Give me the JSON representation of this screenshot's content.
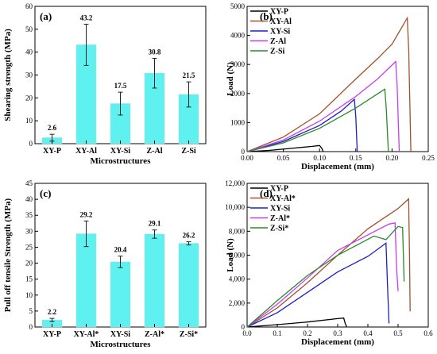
{
  "chart_data": [
    {
      "panel": "(a)",
      "type": "bar",
      "ylabel": "Shearing strength (MPa)",
      "xlabel": "Microstructures",
      "ylim": [
        0,
        60
      ],
      "yticks": [
        "0",
        "10",
        "20",
        "30",
        "40",
        "50",
        "60"
      ],
      "bar_color": "#5ff0f0",
      "categories": [
        "XY-P",
        "XY-Al",
        "XY-Si",
        "Z-Al",
        "Z-Si"
      ],
      "values": [
        2.6,
        43.2,
        17.5,
        30.8,
        21.5
      ],
      "errors": [
        1.5,
        9.0,
        5.0,
        6.5,
        5.5
      ],
      "value_labels": [
        "2.6",
        "43.2",
        "17.5",
        "30.8",
        "21.5"
      ]
    },
    {
      "panel": "(b)",
      "type": "line",
      "ylabel": "Load (N)",
      "xlabel": "Displacement (mm)",
      "xlim": [
        0,
        0.25
      ],
      "ylim": [
        0,
        5000
      ],
      "xticks": [
        "0.00",
        "0.05",
        "0.10",
        "0.15",
        "0.20",
        "0.25"
      ],
      "yticks": [
        "0",
        "1000",
        "2000",
        "3000",
        "4000",
        "5000"
      ],
      "legend_position": "top-left",
      "series": [
        {
          "name": "XY-P",
          "color": "#000000",
          "points": [
            [
              0,
              0
            ],
            [
              0.03,
              40
            ],
            [
              0.06,
              110
            ],
            [
              0.09,
              180
            ],
            [
              0.1,
              210
            ],
            [
              0.103,
              120
            ],
            [
              0.105,
              0
            ]
          ]
        },
        {
          "name": "XY-Al",
          "color": "#a0522d",
          "points": [
            [
              0,
              0
            ],
            [
              0.05,
              500
            ],
            [
              0.1,
              1300
            ],
            [
              0.15,
              2500
            ],
            [
              0.18,
              3200
            ],
            [
              0.2,
              3700
            ],
            [
              0.221,
              4600
            ],
            [
              0.223,
              3500
            ],
            [
              0.226,
              0
            ]
          ]
        },
        {
          "name": "XY-Si",
          "color": "#1e1ec8",
          "points": [
            [
              0,
              0
            ],
            [
              0.05,
              350
            ],
            [
              0.1,
              900
            ],
            [
              0.13,
              1400
            ],
            [
              0.148,
              1800
            ],
            [
              0.15,
              1200
            ],
            [
              0.152,
              0
            ]
          ]
        },
        {
          "name": "Z-Al",
          "color": "#c83cf0",
          "points": [
            [
              0,
              0
            ],
            [
              0.05,
              400
            ],
            [
              0.1,
              1050
            ],
            [
              0.15,
              1900
            ],
            [
              0.18,
              2500
            ],
            [
              0.205,
              3100
            ],
            [
              0.207,
              2300
            ],
            [
              0.21,
              0
            ]
          ]
        },
        {
          "name": "Z-Si",
          "color": "#2a8a2a",
          "points": [
            [
              0,
              0
            ],
            [
              0.05,
              300
            ],
            [
              0.1,
              800
            ],
            [
              0.15,
              1500
            ],
            [
              0.19,
              2150
            ],
            [
              0.192,
              1500
            ],
            [
              0.195,
              0
            ]
          ]
        }
      ]
    },
    {
      "panel": "(c)",
      "type": "bar",
      "ylabel": "Pull off tensile Strength (MPa)",
      "xlabel": "Microstructures",
      "ylim": [
        0,
        45
      ],
      "yticks": [
        "0",
        "5",
        "10",
        "15",
        "20",
        "25",
        "30",
        "35",
        "40",
        "45"
      ],
      "bar_color": "#5ff0f0",
      "categories": [
        "XY-P",
        "XY-Al*",
        "XY-Si",
        "Z-Al*",
        "Z-Si*"
      ],
      "values": [
        2.2,
        29.2,
        20.4,
        29.1,
        26.2
      ],
      "errors": [
        0.5,
        4.0,
        1.8,
        1.3,
        0.5
      ],
      "value_labels": [
        "2.2",
        "29.2",
        "20.4",
        "29.1",
        "26.2"
      ]
    },
    {
      "panel": "(d)",
      "type": "line",
      "ylabel": "Load (N)",
      "xlabel": "Displacement (mm)",
      "xlim": [
        0,
        0.6
      ],
      "ylim": [
        0,
        12000
      ],
      "xticks": [
        "0.0",
        "0.1",
        "0.2",
        "0.3",
        "0.4",
        "0.5",
        "0.6"
      ],
      "yticks": [
        "0",
        "2,000",
        "4,000",
        "6,000",
        "8,000",
        "10,000",
        "12,000"
      ],
      "legend_position": "top-left",
      "series": [
        {
          "name": "XY-P",
          "color": "#000000",
          "points": [
            [
              0,
              0
            ],
            [
              0.1,
              200
            ],
            [
              0.2,
              420
            ],
            [
              0.3,
              700
            ],
            [
              0.32,
              750
            ],
            [
              0.325,
              300
            ],
            [
              0.33,
              0
            ]
          ]
        },
        {
          "name": "XY-Al*",
          "color": "#a0522d",
          "points": [
            [
              0,
              0
            ],
            [
              0.1,
              1600
            ],
            [
              0.2,
              3700
            ],
            [
              0.3,
              6000
            ],
            [
              0.4,
              8200
            ],
            [
              0.5,
              9900
            ],
            [
              0.535,
              10700
            ],
            [
              0.538,
              6000
            ],
            [
              0.54,
              1300
            ]
          ]
        },
        {
          "name": "XY-Si",
          "color": "#1e1ec8",
          "points": [
            [
              0,
              0
            ],
            [
              0.1,
              1200
            ],
            [
              0.2,
              2900
            ],
            [
              0.3,
              4600
            ],
            [
              0.4,
              5900
            ],
            [
              0.46,
              7000
            ],
            [
              0.465,
              3500
            ],
            [
              0.47,
              300
            ]
          ]
        },
        {
          "name": "Z-Al*",
          "color": "#c83cf0",
          "points": [
            [
              0,
              0
            ],
            [
              0.1,
              1900
            ],
            [
              0.2,
              4100
            ],
            [
              0.3,
              6400
            ],
            [
              0.4,
              7700
            ],
            [
              0.47,
              8600
            ],
            [
              0.49,
              8700
            ],
            [
              0.495,
              5000
            ],
            [
              0.5,
              3000
            ]
          ]
        },
        {
          "name": "Z-Si*",
          "color": "#2a8a2a",
          "points": [
            [
              0,
              0
            ],
            [
              0.1,
              2200
            ],
            [
              0.2,
              4300
            ],
            [
              0.3,
              6000
            ],
            [
              0.42,
              7600
            ],
            [
              0.46,
              7300
            ],
            [
              0.5,
              8400
            ],
            [
              0.515,
              8300
            ],
            [
              0.52,
              3800
            ]
          ]
        }
      ]
    }
  ]
}
